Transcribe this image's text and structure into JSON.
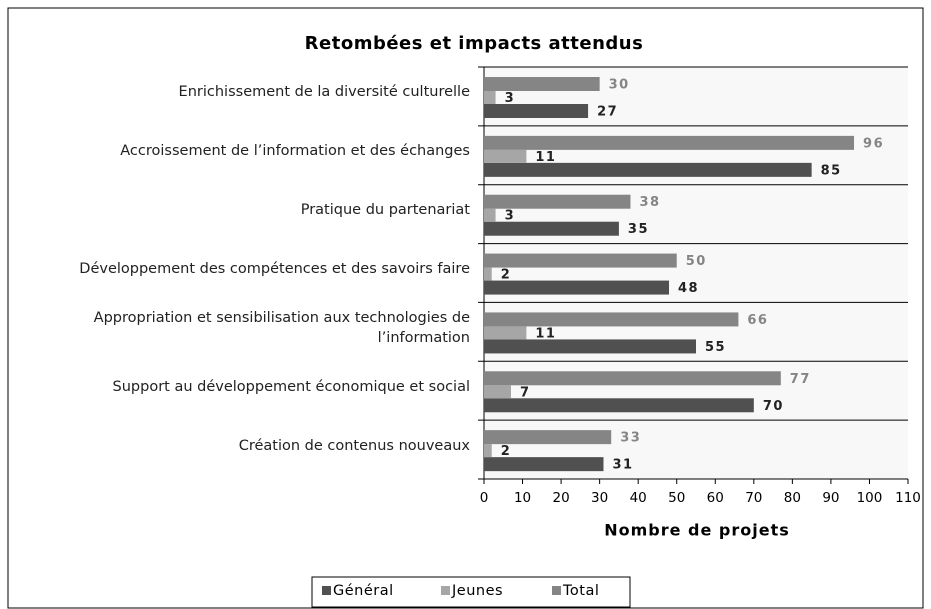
{
  "chart_data": {
    "type": "bar",
    "orientation": "horizontal",
    "title": "Retombées et impacts attendus",
    "xlabel": "Nombre de projets",
    "categories": [
      "Enrichissement de la diversité culturelle",
      "Accroissement de l’information et des échanges",
      "Pratique du partenariat",
      "Développement des compétences  et des savoirs faire",
      "Appropriation et sensibilisation aux technologies de l’information",
      "Support au développement économique et social",
      "Création de contenus nouveaux"
    ],
    "series": [
      {
        "name": "Général",
        "color": "#505050",
        "values": [
          27,
          85,
          35,
          48,
          55,
          70,
          31
        ]
      },
      {
        "name": "Jeunes",
        "color": "#a6a6a6",
        "values": [
          3,
          11,
          3,
          2,
          11,
          7,
          2
        ]
      },
      {
        "name": "Total",
        "color": "#858585",
        "values": [
          30,
          96,
          38,
          50,
          66,
          77,
          33
        ]
      }
    ],
    "xlim": [
      0,
      110
    ],
    "xticks": [
      0,
      10,
      20,
      30,
      40,
      50,
      60,
      70,
      80,
      90,
      100,
      110
    ],
    "legend": "bottom"
  }
}
